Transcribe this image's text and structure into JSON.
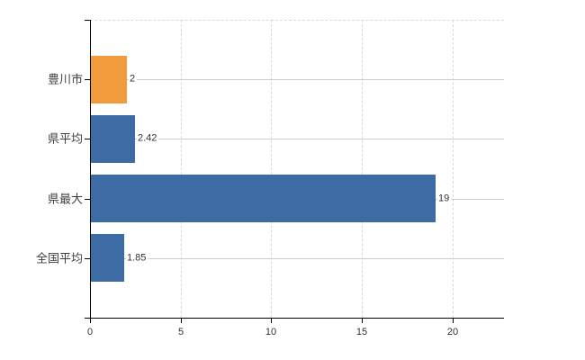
{
  "chart_data": {
    "type": "bar",
    "orientation": "horizontal",
    "title": "",
    "xlabel": "",
    "ylabel": "",
    "categories": [
      "豊川市",
      "県平均",
      "県最大",
      "全国平均"
    ],
    "values": [
      2,
      2.42,
      19,
      1.85
    ],
    "value_labels": [
      "2",
      "2.42",
      "19",
      "1.85"
    ],
    "bar_colors": [
      "#F19B3C",
      "#3D6CA5",
      "#3D6CA5",
      "#3D6CA5"
    ],
    "x_ticks": [
      0,
      5,
      10,
      15,
      20
    ],
    "x_tick_labels": [
      "0",
      "5",
      "10",
      "15",
      "20"
    ],
    "xlim": [
      0,
      22.83
    ],
    "legend": null,
    "grid": {
      "vertical_lines": "dashed at each x tick",
      "horizontal_lines": "solid at each category center",
      "top_border": "dashed"
    },
    "colors": {
      "highlight_bar": "#F19B3C",
      "default_bar": "#3D6CA5",
      "axis": "#000000",
      "gridline": "#CDCDCD",
      "text": "#333333"
    }
  }
}
